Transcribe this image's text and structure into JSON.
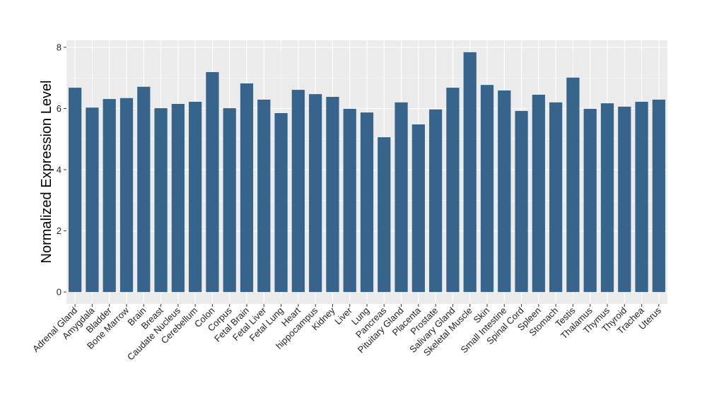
{
  "chart_data": {
    "type": "bar",
    "title": "",
    "xlabel": "",
    "ylabel": "Normalized Expression Level",
    "ylim": [
      -0.39,
      8.23
    ],
    "yticks": [
      0,
      2,
      4,
      6,
      8
    ],
    "grid": true,
    "legend": "none",
    "colors": {
      "bar": "#36648b",
      "panel": "#ebebeb",
      "grid": "#ffffff"
    },
    "categories": [
      "Adrenal Gland",
      "Amygdala",
      "Bladder",
      "Bone Marrow",
      "Brain",
      "Breast",
      "Caudate Nucleus",
      "Cerebellum",
      "Colon",
      "Corpus",
      "Fetal Brain",
      "Fetal Liver",
      "Fetal Lung",
      "Heart",
      "hippocampus",
      "Kidney",
      "Liver",
      "Lung",
      "Pancreas",
      "Pituitary Gland",
      "Placenta",
      "Prostate",
      "Salivary Gland",
      "Skeletal Muscle",
      "Skin",
      "Small Intestine",
      "Spinal Cord",
      "Spleen",
      "Stomach",
      "Testis",
      "Thalamus",
      "Thymus",
      "Thyroid",
      "Trachea",
      "Uterus"
    ],
    "values": [
      6.68,
      6.03,
      6.31,
      6.34,
      6.71,
      6.01,
      6.15,
      6.22,
      7.19,
      6.01,
      6.82,
      6.29,
      5.85,
      6.61,
      6.47,
      6.38,
      5.99,
      5.87,
      5.06,
      6.2,
      5.48,
      5.97,
      6.68,
      7.84,
      6.77,
      6.59,
      5.92,
      6.45,
      6.2,
      7.01,
      5.99,
      6.17,
      6.06,
      6.22,
      6.29
    ]
  }
}
